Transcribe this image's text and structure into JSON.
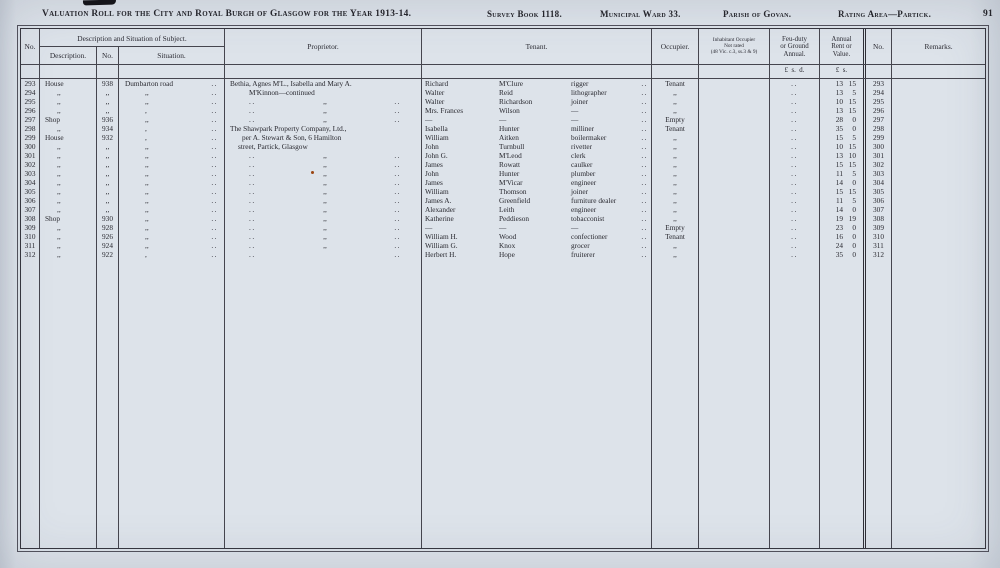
{
  "masthead": {
    "title": "Valuation Roll for the City and Royal Burgh of Glasgow for the Year 1913-14.",
    "survey_book": "Survey Book 1118.",
    "ward": "Municipal Ward 33.",
    "parish": "Parish of Govan.",
    "rating_area": "Rating Area—Partick.",
    "page_number": "91"
  },
  "table_header": {
    "no": "No.",
    "desc_group": "Description and Situation of Subject.",
    "description": "Description.",
    "desc_no": "No.",
    "situation": "Situation.",
    "proprietor": "Proprietor.",
    "tenant": "Tenant.",
    "occupier": "Occupier.",
    "inhabitant": {
      "l1": "Inhabitant Occupier",
      "l2": "Not rated",
      "l3": "(48 Vic. c.3, ss.3 & 9)"
    },
    "feu_duty": {
      "l1": "Feu-duty",
      "l2": "or Ground",
      "l3": "Annual."
    },
    "annual_rent": {
      "l1": "Annual",
      "l2": "Rent or",
      "l3": "Value."
    },
    "feu_units": "£  s.  d.",
    "annual_units": "£  s.",
    "no2": "No.",
    "remarks": "Remarks."
  },
  "rows": [
    {
      "no": "293",
      "desc": "House",
      "dind": 5,
      "dno": "938",
      "sit": "Dumbarton road",
      "sind": 6,
      "sdots": "..",
      "prop": "Bethia, Agnes M'L., Isabella and Mary A.",
      "pind": 5,
      "pl": "",
      "pm": "",
      "pr": "",
      "tf": "Richard",
      "tl": "M'Clure",
      "tt": "rigger",
      "tdots": "..",
      "occ": "Tenant",
      "fdots": "..",
      "lb": "13",
      "sh": "15",
      "no2": "293",
      "remarks": ""
    },
    {
      "no": "294",
      "desc": ",,",
      "dind": 17,
      "dno": ",,",
      "sit": ",,",
      "sind": 26,
      "sdots": "..",
      "prop": "M'Kinnon—continued",
      "pind": 24,
      "pl": "",
      "pm": "",
      "pr": "",
      "tf": "Walter",
      "tl": "Reid",
      "tt": "lithographer",
      "tdots": "..",
      "occ": ",,",
      "fdots": "..",
      "lb": "13",
      "sh": "5",
      "no2": "294",
      "remarks": ""
    },
    {
      "no": "295",
      "desc": ",,",
      "dind": 17,
      "dno": ",,",
      "sit": ",,",
      "sind": 26,
      "sdots": "..",
      "prop": "",
      "pl": "..",
      "pm": ",,",
      "pr": "..",
      "tf": "Walter",
      "tl": "Richardson",
      "tt": "joiner",
      "tdots": "..",
      "occ": ",,",
      "fdots": "..",
      "lb": "10",
      "sh": "15",
      "no2": "295",
      "remarks": ""
    },
    {
      "no": "296",
      "desc": ",,",
      "dind": 17,
      "dno": ",,",
      "sit": ",",
      "sind": 26,
      "sdots": "..",
      "prop": "",
      "pl": "..",
      "pm": ",,",
      "pr": "..",
      "tf": "Mrs. Frances",
      "tl": "Wilson",
      "tt": "—",
      "tdots": "..",
      "occ": ",,",
      "fdots": "..",
      "lb": "13",
      "sh": "15",
      "no2": "296",
      "remarks": ""
    },
    {
      "no": "297",
      "desc": "Shop",
      "dind": 5,
      "dno": "936",
      "sit": ",,",
      "sind": 26,
      "sdots": "..",
      "prop": "",
      "pl": "..",
      "pm": ",,",
      "pr": "..",
      "tf": "—",
      "tl": "—",
      "tt": "—",
      "tdots": "..",
      "occ": "Empty",
      "fdots": "..",
      "lb": "28",
      "sh": "0",
      "no2": "297",
      "remarks": ""
    },
    {
      "no": "298",
      "desc": ",,",
      "dind": 17,
      "dno": "934",
      "sit": ",",
      "sind": 26,
      "sdots": "..",
      "prop": "The Shawpark Property Company, Ltd.,",
      "pind": 5,
      "pl": "",
      "pm": "",
      "pr": "",
      "tf": "Isabella",
      "tl": "Hunter",
      "tt": "milliner",
      "tdots": "..",
      "occ": "Tenant",
      "fdots": "..",
      "lb": "35",
      "sh": "0",
      "no2": "298",
      "remarks": ""
    },
    {
      "no": "299",
      "desc": "House",
      "dind": 5,
      "dno": "932",
      "sit": ",",
      "sind": 26,
      "sdots": "..",
      "prop": "per A. Stewart & Son, 6 Hamilton",
      "pind": 17,
      "pl": "",
      "pm": "",
      "pr": "",
      "tf": "William",
      "tl": "Aitken",
      "tt": "boilermaker",
      "tdots": "..",
      "occ": ",,",
      "fdots": "..",
      "lb": "15",
      "sh": "5",
      "no2": "299",
      "remarks": ""
    },
    {
      "no": "300",
      "desc": ",,",
      "dind": 17,
      "dno": ",,",
      "sit": ",,",
      "sind": 26,
      "sdots": "..",
      "prop": "street, Partick, Glasgow",
      "pind": 13,
      "pl": "",
      "pm": "",
      "pr": "",
      "tf": "John",
      "tl": "Turnbull",
      "tt": "rivetter",
      "tdots": "..",
      "occ": ",,",
      "fdots": "..",
      "lb": "10",
      "sh": "15",
      "no2": "300",
      "remarks": ""
    },
    {
      "no": "301",
      "desc": ",,",
      "dind": 17,
      "dno": ",,",
      "sit": ",,",
      "sind": 26,
      "sdots": "..",
      "prop": "",
      "pl": "..",
      "pm": ",,",
      "pr": "..",
      "tf": "John G.",
      "tl": "M'Leod",
      "tt": "clerk",
      "tdots": "..",
      "occ": ",,",
      "fdots": "..",
      "lb": "13",
      "sh": "10",
      "no2": "301",
      "remarks": ""
    },
    {
      "no": "302",
      "desc": ",,",
      "dind": 17,
      "dno": ",,",
      "sit": ",,",
      "sind": 26,
      "sdots": "..",
      "prop": "",
      "pl": "..",
      "pm": ",,",
      "pr": "..",
      "tf": "James",
      "tl": "Rowatt",
      "tt": "caulker",
      "tdots": "..",
      "occ": ",,",
      "fdots": "..",
      "lb": "15",
      "sh": "15",
      "no2": "302",
      "remarks": ""
    },
    {
      "no": "303",
      "desc": ",,",
      "dind": 17,
      "dno": ",,",
      "sit": ",,",
      "sind": 26,
      "sdots": "..",
      "prop": "",
      "pl": "..",
      "pm": ",,",
      "pr": "..",
      "tf": "John",
      "tl": "Hunter",
      "tt": "plumber",
      "tdots": "..",
      "occ": ",,",
      "fdots": "..",
      "lb": "11",
      "sh": "5",
      "no2": "303",
      "remarks": ""
    },
    {
      "no": "304",
      "desc": ",,",
      "dind": 17,
      "dno": ",,",
      "sit": ",,",
      "sind": 26,
      "sdots": "..",
      "prop": "",
      "pl": "..",
      "pm": ",,",
      "pr": "..",
      "tf": "James",
      "tl": "M'Vicar",
      "tt": "engineer",
      "tdots": "..",
      "occ": ",,",
      "fdots": "..",
      "lb": "14",
      "sh": "0",
      "no2": "304",
      "remarks": ""
    },
    {
      "no": "305",
      "desc": ",,",
      "dind": 17,
      "dno": ",,",
      "sit": ",,",
      "sind": 26,
      "sdots": "..",
      "prop": "",
      "pl": "..",
      "pm": ",,",
      "pr": "..",
      "tf": "William",
      "tl": "Thomson",
      "tt": "joiner",
      "tdots": "..",
      "occ": ",,",
      "fdots": "..",
      "lb": "15",
      "sh": "15",
      "no2": "305",
      "remarks": ""
    },
    {
      "no": "306",
      "desc": ",,",
      "dind": 17,
      "dno": ",,",
      "sit": ",,",
      "sind": 26,
      "sdots": "..",
      "prop": "",
      "pl": "..",
      "pm": ",,",
      "pr": "..",
      "tf": "James A.",
      "tl": "Greenfield",
      "tt": "furniture dealer",
      "tdots": "..",
      "occ": ",,",
      "fdots": "..",
      "lb": "11",
      "sh": "5",
      "no2": "306",
      "remarks": ""
    },
    {
      "no": "307",
      "desc": ",,",
      "dind": 17,
      "dno": ",,",
      "sit": ",,",
      "sind": 26,
      "sdots": "..",
      "prop": "",
      "pl": "..",
      "pm": ",,",
      "pr": "..",
      "tf": "Alexander",
      "tl": "Leith",
      "tt": "engineer",
      "tdots": "..",
      "occ": ",,",
      "fdots": "..",
      "lb": "14",
      "sh": "0",
      "no2": "307",
      "remarks": ""
    },
    {
      "no": "308",
      "desc": "Shop",
      "dind": 5,
      "dno": "930",
      "sit": ",,",
      "sind": 26,
      "sdots": "..",
      "prop": "",
      "pl": "..",
      "pm": ",,",
      "pr": "..",
      "tf": "Katherine",
      "tl": "Peddieson",
      "tt": "tobacconist",
      "tdots": "..",
      "occ": ",,",
      "fdots": "..",
      "lb": "19",
      "sh": "19",
      "no2": "308",
      "remarks": ""
    },
    {
      "no": "309",
      "desc": ",,",
      "dind": 17,
      "dno": "928",
      "sit": ",,",
      "sind": 26,
      "sdots": "..",
      "prop": "",
      "pl": "..",
      "pm": ",,",
      "pr": "..",
      "tf": "—",
      "tl": "—",
      "tt": "—",
      "tdots": "..",
      "occ": "Empty",
      "fdots": "..",
      "lb": "23",
      "sh": "0",
      "no2": "309",
      "remarks": ""
    },
    {
      "no": "310",
      "desc": ",,",
      "dind": 17,
      "dno": "926",
      "sit": ",,",
      "sind": 26,
      "sdots": "..",
      "prop": "",
      "pl": "..",
      "pm": ",,",
      "pr": "..",
      "tf": "William H.",
      "tl": "Wood",
      "tt": "confectioner",
      "tdots": "..",
      "occ": "Tenant",
      "fdots": "..",
      "lb": "16",
      "sh": "0",
      "no2": "310",
      "remarks": ""
    },
    {
      "no": "311",
      "desc": ",,",
      "dind": 17,
      "dno": "924",
      "sit": ",,",
      "sind": 26,
      "sdots": "..",
      "prop": "",
      "pl": "..",
      "pm": ",,",
      "pr": "..",
      "tf": "William G.",
      "tl": "Knox",
      "tt": "grocer",
      "tdots": "..",
      "occ": ",,",
      "fdots": "..",
      "lb": "24",
      "sh": "0",
      "no2": "311",
      "remarks": ""
    },
    {
      "no": "312",
      "desc": ",,",
      "dind": 17,
      "dno": "922",
      "sit": ",",
      "sind": 26,
      "sdots": "..",
      "prop": "",
      "pl": "..",
      "pm": "",
      "pr": "..",
      "tf": "Herbert H.",
      "tl": "Hope",
      "tt": "fruiterer",
      "tdots": "..",
      "occ": ",,",
      "fdots": "..",
      "lb": "35",
      "sh": "0",
      "no2": "312",
      "remarks": ""
    }
  ]
}
